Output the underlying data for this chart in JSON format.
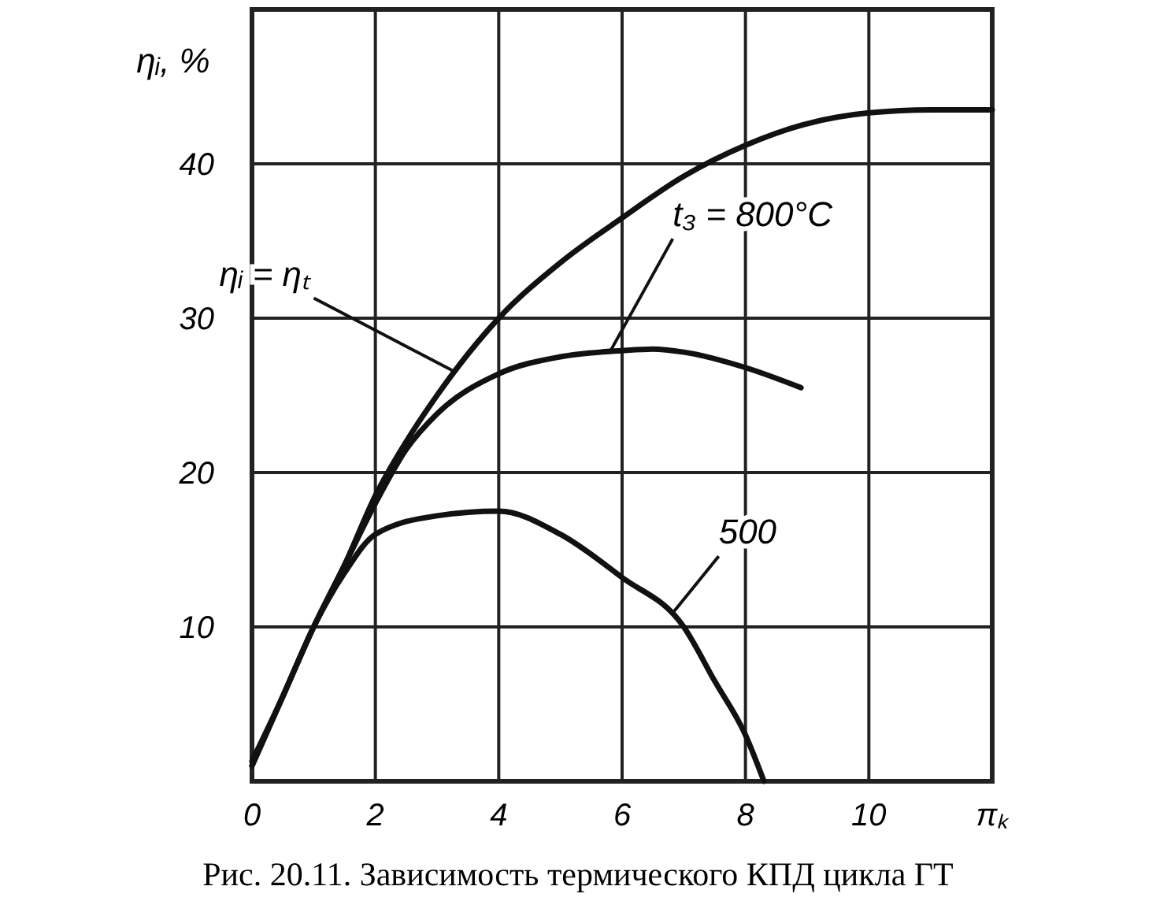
{
  "chart_data": {
    "type": "line",
    "ylabel": "ηᵢ, %",
    "xlabel": "πₖ",
    "xlim": [
      0,
      12
    ],
    "ylim": [
      0,
      50
    ],
    "xticks": [
      0,
      2,
      4,
      6,
      8,
      10
    ],
    "yticks": [
      {
        "value": 0,
        "label": null
      },
      10,
      20,
      30,
      40,
      {
        "value": 50,
        "label": null
      }
    ],
    "grid": true,
    "series": [
      {
        "color": "#111111",
        "x": [
          0,
          0.5,
          1,
          1.5,
          2,
          2.5,
          3,
          4,
          5,
          6,
          7,
          8,
          9,
          10,
          11,
          12
        ],
        "values": [
          1,
          5.5,
          10,
          14,
          18.5,
          22,
          25,
          30,
          33.6,
          36.5,
          39.2,
          41.2,
          42.6,
          43.3,
          43.5,
          43.5
        ]
      },
      {
        "color": "#111111",
        "x": [
          0,
          0.5,
          1,
          1.5,
          2,
          2.5,
          3,
          4,
          5,
          6,
          6.5,
          7,
          8,
          8.9
        ],
        "values": [
          1,
          5.5,
          10,
          14,
          18,
          21.5,
          23.8,
          26.4,
          27.5,
          27.9,
          28,
          27.8,
          26.8,
          25.5
        ]
      },
      {
        "color": "#111111",
        "x": [
          0,
          0.5,
          1,
          1.5,
          2,
          3,
          4,
          5,
          6,
          7,
          7.5,
          8,
          8.3
        ],
        "values": [
          1.3,
          5.5,
          10,
          13.5,
          16,
          17.2,
          17.5,
          16,
          13.2,
          10,
          6.5,
          3,
          0
        ]
      }
    ],
    "annotations": [
      {
        "text": "ηᵢ = ηₜ",
        "x": 3.3,
        "y": 26.5
      },
      {
        "text": "t₃ = 800°C",
        "x": 5.8,
        "y": 27.8
      },
      {
        "text": "500",
        "x": 6.8,
        "y": 10.8
      },
      "Рис. 20.11. Зависимость термического КПД цикла ГТ"
    ]
  }
}
